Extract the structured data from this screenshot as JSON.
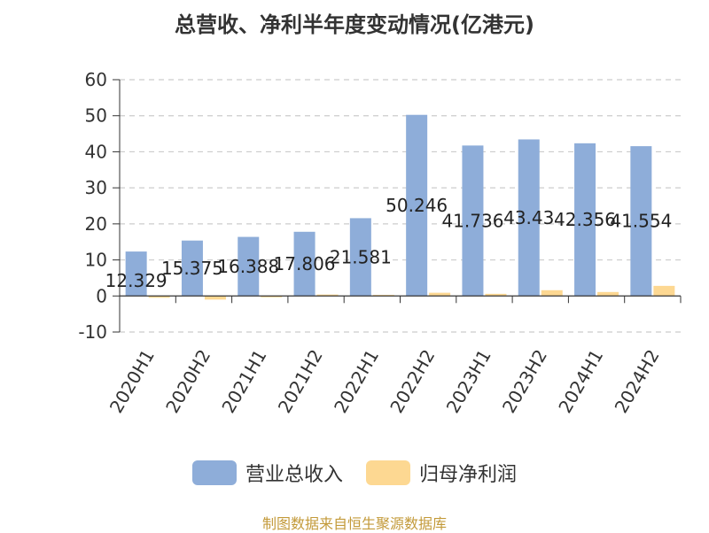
{
  "chart_data": {
    "type": "bar",
    "title": "总营收、净利半年度变动情况(亿港元)",
    "categories": [
      "2020H1",
      "2020H2",
      "2021H1",
      "2021H2",
      "2022H1",
      "2022H2",
      "2023H1",
      "2023H2",
      "2024H1",
      "2024H2"
    ],
    "series": [
      {
        "name": "营业总收入",
        "color": "#8eadd9",
        "values": [
          12.329,
          15.375,
          16.388,
          17.806,
          21.581,
          50.246,
          41.736,
          43.43,
          42.356,
          41.554
        ],
        "labels": [
          "12.329",
          "15.375",
          "16.388",
          "17.806",
          "21.581",
          "50.246",
          "41.736",
          "43.43",
          "42.356",
          "41.554"
        ]
      },
      {
        "name": "归母净利润",
        "color": "#fdd892",
        "values": [
          -0.5,
          -1.0,
          -0.1,
          0.4,
          0.3,
          0.9,
          0.6,
          1.6,
          1.1,
          2.8
        ]
      }
    ],
    "ylim": [
      -10,
      60
    ],
    "yticks": [
      60,
      50,
      40,
      30,
      20,
      10,
      0,
      -10
    ],
    "grid": true,
    "legend_position": "bottom"
  },
  "source_text": "制图数据来自恒生聚源数据库"
}
